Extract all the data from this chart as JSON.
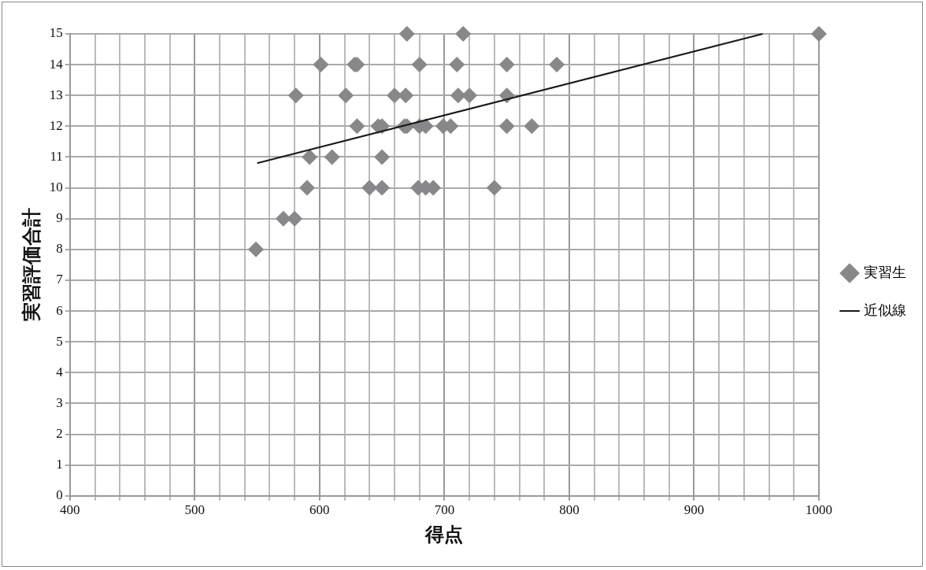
{
  "chart_data": {
    "type": "scatter",
    "xlabel": "得点",
    "ylabel": "実習評価合計",
    "xlim": [
      400,
      1000
    ],
    "xticks": [
      400,
      {
        "value": 420,
        "label": null
      },
      {
        "value": 440,
        "label": null
      },
      {
        "value": 460,
        "label": null
      },
      {
        "value": 480,
        "label": null
      },
      500,
      {
        "value": 520,
        "label": null
      },
      {
        "value": 540,
        "label": null
      },
      {
        "value": 560,
        "label": null
      },
      {
        "value": 580,
        "label": null
      },
      600,
      {
        "value": 620,
        "label": null
      },
      {
        "value": 640,
        "label": null
      },
      {
        "value": 660,
        "label": null
      },
      {
        "value": 680,
        "label": null
      },
      700,
      {
        "value": 720,
        "label": null
      },
      {
        "value": 740,
        "label": null
      },
      {
        "value": 760,
        "label": null
      },
      {
        "value": 780,
        "label": null
      },
      800,
      {
        "value": 820,
        "label": null
      },
      {
        "value": 840,
        "label": null
      },
      {
        "value": 860,
        "label": null
      },
      {
        "value": 880,
        "label": null
      },
      900,
      {
        "value": 920,
        "label": null
      },
      {
        "value": 940,
        "label": null
      },
      {
        "value": 960,
        "label": null
      },
      {
        "value": 980,
        "label": null
      },
      1000
    ],
    "ylim": [
      0,
      15
    ],
    "yticks": [
      0,
      1,
      2,
      3,
      4,
      5,
      6,
      7,
      8,
      9,
      10,
      11,
      12,
      13,
      14,
      15
    ],
    "grid": true,
    "legend": "right",
    "marker": "diamond",
    "series": [
      {
        "name": "実習生",
        "color": "#86888b",
        "x": [
          670,
          715,
          601,
          628,
          630,
          680,
          710,
          750,
          790,
          581,
          621,
          660,
          669,
          711,
          720,
          750,
          630,
          647,
          650,
          668,
          670,
          680,
          685,
          699,
          705,
          750,
          770,
          592,
          610,
          650,
          590,
          640,
          650,
          679,
          685,
          691,
          740,
          571,
          580,
          549,
          1000
        ],
        "values": [
          15,
          15,
          14,
          14,
          14,
          14,
          14,
          14,
          14,
          13,
          13,
          13,
          13,
          13,
          13,
          13,
          12,
          12,
          12,
          12,
          12,
          12,
          12,
          12,
          12,
          12,
          12,
          11,
          11,
          11,
          10,
          10,
          10,
          10,
          10,
          10,
          10,
          9,
          9,
          8,
          15
        ]
      },
      {
        "name": "近似線",
        "type": "line",
        "color": "#1a1a1a",
        "marker": "none",
        "line_style": "solid",
        "x": [
          550,
          955
        ],
        "values": [
          10.8,
          15
        ]
      }
    ]
  }
}
